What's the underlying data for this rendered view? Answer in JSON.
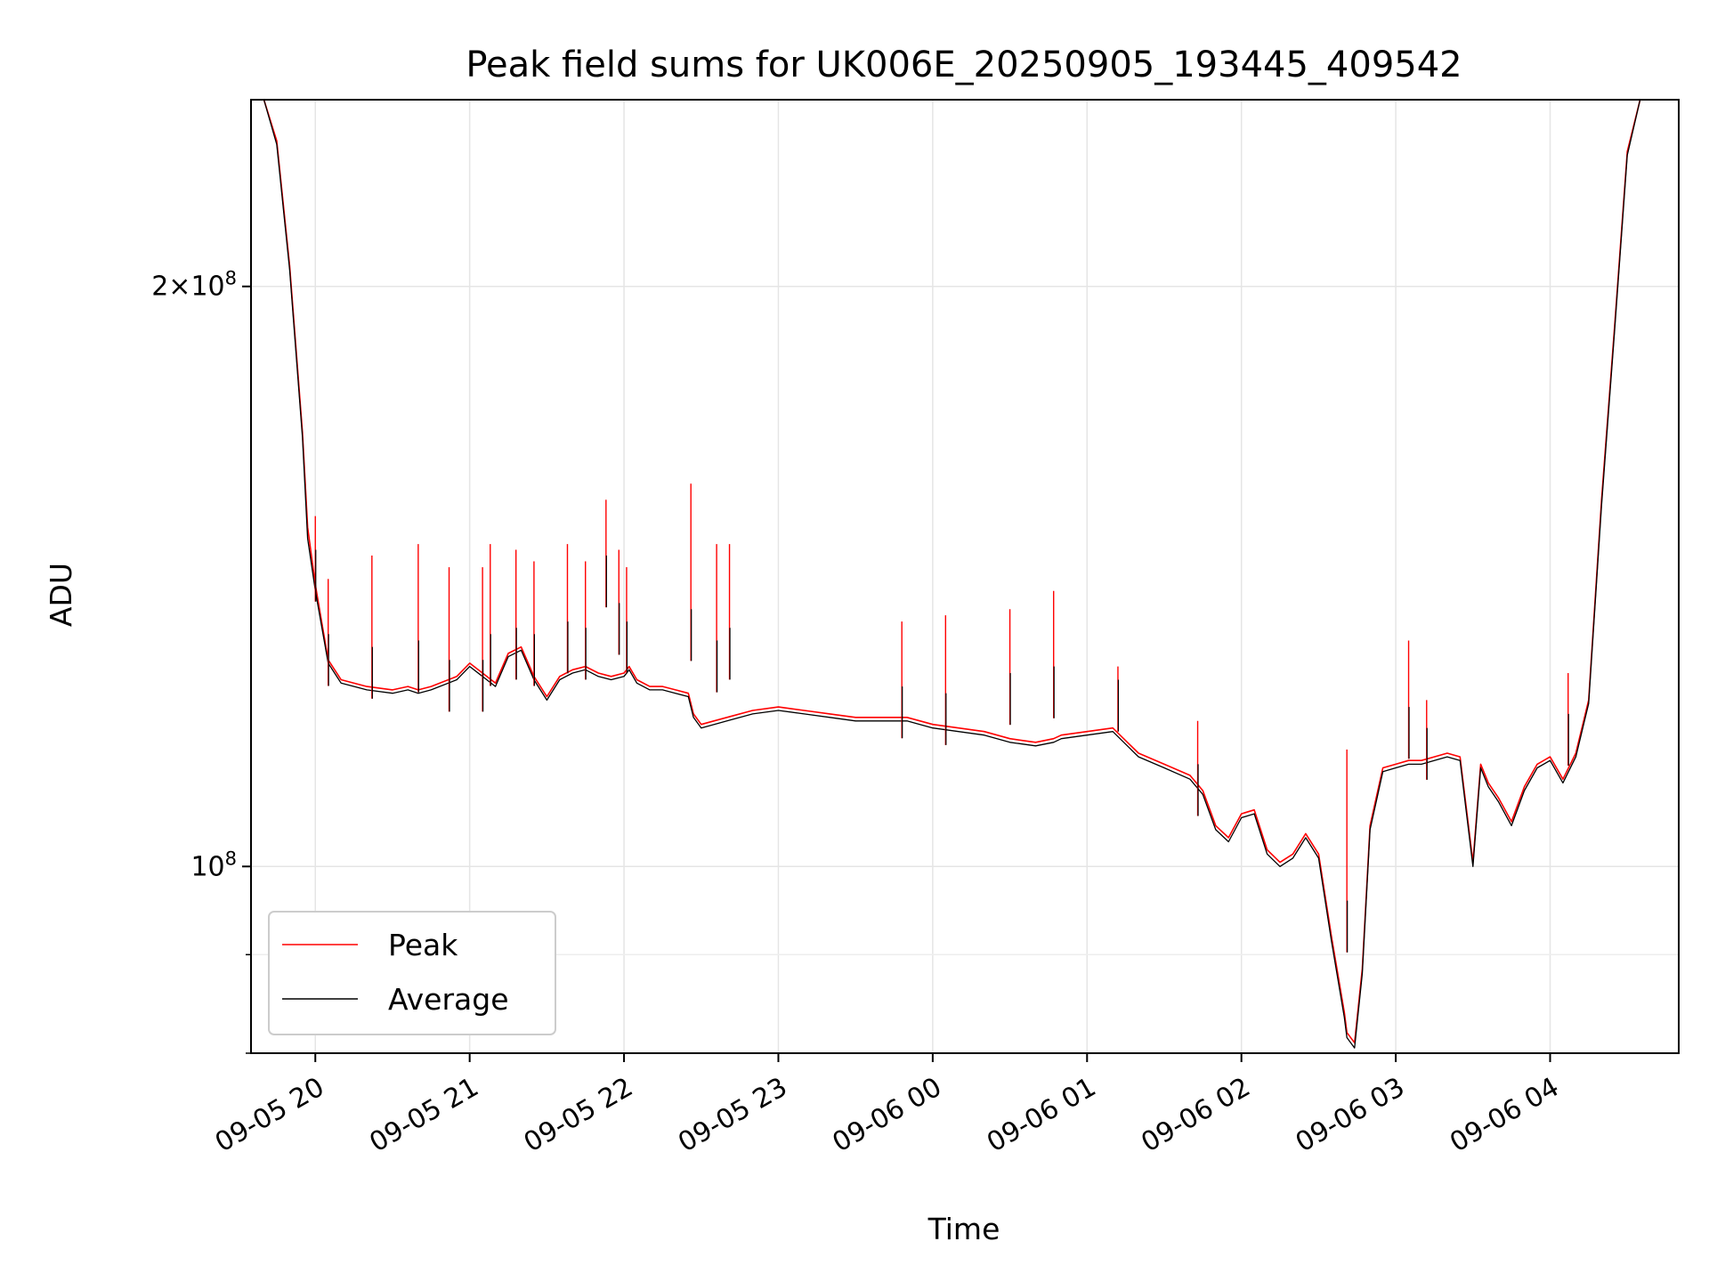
{
  "chart_data": {
    "type": "line",
    "title": "Peak field sums for UK006E_20250905_193445_409542",
    "xlabel": "Time",
    "ylabel": "ADU",
    "yscale": "log",
    "ylim": [
      80000000,
      250000000
    ],
    "xlim": [
      "2025-09-05 19:35",
      "2025-09-06 04:50"
    ],
    "grid": true,
    "legend_position": "lower-left",
    "x_tick_labels": [
      "09-05 20",
      "09-05 21",
      "09-05 22",
      "09-05 23",
      "09-06 00",
      "09-06 01",
      "09-06 02",
      "09-06 03",
      "09-06 04"
    ],
    "x_ticks": [
      "2025-09-05 20:00",
      "2025-09-05 21:00",
      "2025-09-05 22:00",
      "2025-09-05 23:00",
      "2025-09-06 00:00",
      "2025-09-06 01:00",
      "2025-09-06 02:00",
      "2025-09-06 03:00",
      "2025-09-06 04:00"
    ],
    "y_tick_labels": [
      {
        "value": 100000000,
        "mantissa": "",
        "exp": "8",
        "base": "10"
      },
      {
        "value": 200000000,
        "mantissa": "2",
        "exp": "8",
        "base": "10"
      }
    ],
    "series": [
      {
        "name": "Peak",
        "color": "#ff0000",
        "x": [
          "2025-09-05 19:35",
          "2025-09-05 19:40",
          "2025-09-05 19:45",
          "2025-09-05 19:50",
          "2025-09-05 19:55",
          "2025-09-05 19:57",
          "2025-09-05 20:00",
          "2025-09-05 20:05",
          "2025-09-05 20:10",
          "2025-09-05 20:20",
          "2025-09-05 20:30",
          "2025-09-05 20:36",
          "2025-09-05 20:40",
          "2025-09-05 20:45",
          "2025-09-05 20:55",
          "2025-09-05 21:00",
          "2025-09-05 21:05",
          "2025-09-05 21:10",
          "2025-09-05 21:15",
          "2025-09-05 21:20",
          "2025-09-05 21:25",
          "2025-09-05 21:30",
          "2025-09-05 21:35",
          "2025-09-05 21:40",
          "2025-09-05 21:45",
          "2025-09-05 21:50",
          "2025-09-05 21:55",
          "2025-09-05 22:00",
          "2025-09-05 22:02",
          "2025-09-05 22:05",
          "2025-09-05 22:10",
          "2025-09-05 22:15",
          "2025-09-05 22:20",
          "2025-09-05 22:25",
          "2025-09-05 22:27",
          "2025-09-05 22:30",
          "2025-09-05 22:40",
          "2025-09-05 22:50",
          "2025-09-05 23:00",
          "2025-09-05 23:10",
          "2025-09-05 23:20",
          "2025-09-05 23:30",
          "2025-09-05 23:40",
          "2025-09-05 23:50",
          "2025-09-06 00:00",
          "2025-09-06 00:10",
          "2025-09-06 00:20",
          "2025-09-06 00:30",
          "2025-09-06 00:40",
          "2025-09-06 00:47",
          "2025-09-06 00:50",
          "2025-09-06 01:00",
          "2025-09-06 01:10",
          "2025-09-06 01:20",
          "2025-09-06 01:30",
          "2025-09-06 01:40",
          "2025-09-06 01:45",
          "2025-09-06 01:50",
          "2025-09-06 01:55",
          "2025-09-06 02:00",
          "2025-09-06 02:05",
          "2025-09-06 02:10",
          "2025-09-06 02:15",
          "2025-09-06 02:20",
          "2025-09-06 02:25",
          "2025-09-06 02:30",
          "2025-09-06 02:35",
          "2025-09-06 02:40",
          "2025-09-06 02:41",
          "2025-09-06 02:44",
          "2025-09-06 02:47",
          "2025-09-06 02:50",
          "2025-09-06 02:55",
          "2025-09-06 03:00",
          "2025-09-06 03:05",
          "2025-09-06 03:10",
          "2025-09-06 03:15",
          "2025-09-06 03:20",
          "2025-09-06 03:25",
          "2025-09-06 03:30",
          "2025-09-06 03:33",
          "2025-09-06 03:36",
          "2025-09-06 03:40",
          "2025-09-06 03:45",
          "2025-09-06 03:50",
          "2025-09-06 03:55",
          "2025-09-06 04:00",
          "2025-09-06 04:05",
          "2025-09-06 04:10",
          "2025-09-06 04:15",
          "2025-09-06 04:20",
          "2025-09-06 04:25",
          "2025-09-06 04:30",
          "2025-09-06 04:35",
          "2025-09-06 04:40"
        ],
        "y": [
          250000000,
          250000000,
          238000000,
          205000000,
          168000000,
          150000000,
          140000000,
          128000000,
          125000000,
          124000000,
          123500000,
          124000000,
          123500000,
          124000000,
          125500000,
          127500000,
          126000000,
          124500000,
          129000000,
          130000000,
          125500000,
          122500000,
          125500000,
          126500000,
          127000000,
          126000000,
          125500000,
          126000000,
          127000000,
          125000000,
          124000000,
          124000000,
          123500000,
          123000000,
          120000000,
          118500000,
          119500000,
          120500000,
          121000000,
          120500000,
          120000000,
          119500000,
          119500000,
          119500000,
          118500000,
          118000000,
          117500000,
          116500000,
          116000000,
          116500000,
          117000000,
          117500000,
          118000000,
          114500000,
          113000000,
          111500000,
          109500000,
          105000000,
          103500000,
          106500000,
          107000000,
          102000000,
          100500000,
          101500000,
          104000000,
          101500000,
          92000000,
          84000000,
          82000000,
          81000000,
          88500000,
          105000000,
          112500000,
          113000000,
          113500000,
          113500000,
          114000000,
          114500000,
          114000000,
          100500000,
          113000000,
          110500000,
          108500000,
          105500000,
          110000000,
          113000000,
          114000000,
          111000000,
          114500000,
          122000000,
          155000000,
          190000000,
          235000000,
          250000000,
          250000000
        ]
      },
      {
        "name": "Average",
        "color": "#000000",
        "x": [
          "2025-09-05 19:35",
          "2025-09-05 19:40",
          "2025-09-05 19:45",
          "2025-09-05 19:50",
          "2025-09-05 19:55",
          "2025-09-05 19:57",
          "2025-09-05 20:00",
          "2025-09-05 20:05",
          "2025-09-05 20:10",
          "2025-09-05 20:20",
          "2025-09-05 20:30",
          "2025-09-05 20:36",
          "2025-09-05 20:40",
          "2025-09-05 20:45",
          "2025-09-05 20:55",
          "2025-09-05 21:00",
          "2025-09-05 21:05",
          "2025-09-05 21:10",
          "2025-09-05 21:15",
          "2025-09-05 21:20",
          "2025-09-05 21:25",
          "2025-09-05 21:30",
          "2025-09-05 21:35",
          "2025-09-05 21:40",
          "2025-09-05 21:45",
          "2025-09-05 21:50",
          "2025-09-05 21:55",
          "2025-09-05 22:00",
          "2025-09-05 22:02",
          "2025-09-05 22:05",
          "2025-09-05 22:10",
          "2025-09-05 22:15",
          "2025-09-05 22:20",
          "2025-09-05 22:25",
          "2025-09-05 22:27",
          "2025-09-05 22:30",
          "2025-09-05 22:40",
          "2025-09-05 22:50",
          "2025-09-05 23:00",
          "2025-09-05 23:10",
          "2025-09-05 23:20",
          "2025-09-05 23:30",
          "2025-09-05 23:40",
          "2025-09-05 23:50",
          "2025-09-06 00:00",
          "2025-09-06 00:10",
          "2025-09-06 00:20",
          "2025-09-06 00:30",
          "2025-09-06 00:40",
          "2025-09-06 00:47",
          "2025-09-06 00:50",
          "2025-09-06 01:00",
          "2025-09-06 01:10",
          "2025-09-06 01:20",
          "2025-09-06 01:30",
          "2025-09-06 01:40",
          "2025-09-06 01:45",
          "2025-09-06 01:50",
          "2025-09-06 01:55",
          "2025-09-06 02:00",
          "2025-09-06 02:05",
          "2025-09-06 02:10",
          "2025-09-06 02:15",
          "2025-09-06 02:20",
          "2025-09-06 02:25",
          "2025-09-06 02:30",
          "2025-09-06 02:35",
          "2025-09-06 02:40",
          "2025-09-06 02:41",
          "2025-09-06 02:44",
          "2025-09-06 02:47",
          "2025-09-06 02:50",
          "2025-09-06 02:55",
          "2025-09-06 03:00",
          "2025-09-06 03:05",
          "2025-09-06 03:10",
          "2025-09-06 03:15",
          "2025-09-06 03:20",
          "2025-09-06 03:25",
          "2025-09-06 03:30",
          "2025-09-06 03:33",
          "2025-09-06 03:36",
          "2025-09-06 03:40",
          "2025-09-06 03:45",
          "2025-09-06 03:50",
          "2025-09-06 03:55",
          "2025-09-06 04:00",
          "2025-09-06 04:05",
          "2025-09-06 04:10",
          "2025-09-06 04:15",
          "2025-09-06 04:20",
          "2025-09-06 04:25",
          "2025-09-06 04:30",
          "2025-09-06 04:35",
          "2025-09-06 04:40"
        ],
        "y": [
          250000000,
          250000000,
          237000000,
          204000000,
          167000000,
          148000000,
          139000000,
          127500000,
          124500000,
          123500000,
          123000000,
          123500000,
          123000000,
          123500000,
          125000000,
          127000000,
          125500000,
          124000000,
          128500000,
          129500000,
          125000000,
          122000000,
          125000000,
          126000000,
          126500000,
          125500000,
          125000000,
          125500000,
          126500000,
          124500000,
          123500000,
          123500000,
          123000000,
          122500000,
          119500000,
          118000000,
          119000000,
          120000000,
          120500000,
          120000000,
          119500000,
          119000000,
          119000000,
          119000000,
          118000000,
          117500000,
          117000000,
          116000000,
          115500000,
          116000000,
          116500000,
          117000000,
          117500000,
          114000000,
          112500000,
          111000000,
          109000000,
          104500000,
          103000000,
          106000000,
          106500000,
          101500000,
          100000000,
          101000000,
          103500000,
          101000000,
          91500000,
          83500000,
          81500000,
          80500000,
          88000000,
          104500000,
          112000000,
          112500000,
          113000000,
          113000000,
          113500000,
          114000000,
          113500000,
          100000000,
          112500000,
          110000000,
          108000000,
          105000000,
          109500000,
          112500000,
          113500000,
          110500000,
          114000000,
          121500000,
          154000000,
          189000000,
          234000000,
          250000000,
          250000000
        ]
      }
    ],
    "spikes": [
      {
        "x": "2025-09-05 20:00",
        "peak": 152000000,
        "average": 146000000
      },
      {
        "x": "2025-09-05 20:05",
        "peak": 141000000,
        "average": 132000000
      },
      {
        "x": "2025-09-05 20:22",
        "peak": 145000000,
        "average": 130000000
      },
      {
        "x": "2025-09-05 20:40",
        "peak": 147000000,
        "average": 131000000
      },
      {
        "x": "2025-09-05 20:52",
        "peak": 143000000,
        "average": 128000000
      },
      {
        "x": "2025-09-05 21:05",
        "peak": 143000000,
        "average": 128000000
      },
      {
        "x": "2025-09-05 21:08",
        "peak": 147000000,
        "average": 132000000
      },
      {
        "x": "2025-09-05 21:18",
        "peak": 146000000,
        "average": 133000000
      },
      {
        "x": "2025-09-05 21:25",
        "peak": 144000000,
        "average": 132000000
      },
      {
        "x": "2025-09-05 21:38",
        "peak": 147000000,
        "average": 134000000
      },
      {
        "x": "2025-09-05 21:45",
        "peak": 144000000,
        "average": 133000000
      },
      {
        "x": "2025-09-05 21:53",
        "peak": 155000000,
        "average": 145000000
      },
      {
        "x": "2025-09-05 21:58",
        "peak": 146000000,
        "average": 137000000
      },
      {
        "x": "2025-09-05 22:01",
        "peak": 143000000,
        "average": 134000000
      },
      {
        "x": "2025-09-05 22:26",
        "peak": 158000000,
        "average": 136000000
      },
      {
        "x": "2025-09-05 22:36",
        "peak": 147000000,
        "average": 131000000
      },
      {
        "x": "2025-09-05 22:41",
        "peak": 147000000,
        "average": 133000000
      },
      {
        "x": "2025-09-05 23:48",
        "peak": 134000000,
        "average": 124000000
      },
      {
        "x": "2025-09-06 00:05",
        "peak": 135000000,
        "average": 123000000
      },
      {
        "x": "2025-09-06 00:30",
        "peak": 136000000,
        "average": 126000000
      },
      {
        "x": "2025-09-06 00:47",
        "peak": 139000000,
        "average": 127000000
      },
      {
        "x": "2025-09-06 01:12",
        "peak": 127000000,
        "average": 125000000
      },
      {
        "x": "2025-09-06 01:43",
        "peak": 119000000,
        "average": 113000000
      },
      {
        "x": "2025-09-06 02:41",
        "peak": 115000000,
        "average": 96000000
      },
      {
        "x": "2025-09-06 03:05",
        "peak": 131000000,
        "average": 121000000
      },
      {
        "x": "2025-09-06 03:12",
        "peak": 122000000,
        "average": 118000000
      },
      {
        "x": "2025-09-06 04:07",
        "peak": 126000000,
        "average": 120000000
      }
    ]
  }
}
